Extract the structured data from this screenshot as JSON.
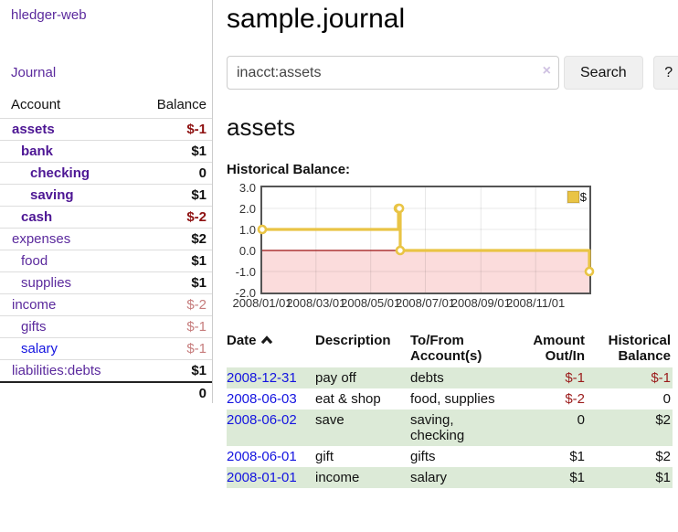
{
  "colors": {
    "link_purple": "#5b2a9d",
    "bold_account_purple": "#4d1694",
    "link_blue": "#1414e0",
    "negative_strong_red": "#8e1111",
    "negative_muted_red": "#c67c7c",
    "table_stripe_green": "#dcead7",
    "chart_line_gold": "#e9c445",
    "chart_negative_fill_pink": "#fbdcdc",
    "chart_zero_line_red": "#9c0f0f"
  },
  "sidebar": {
    "app_title": "hledger-web",
    "nav": {
      "journal": "Journal"
    },
    "accounts": {
      "headers": [
        "Account",
        "Balance"
      ],
      "rows": [
        {
          "name": "assets",
          "indent": 0,
          "bold": true,
          "balance": "$-1",
          "balance_style": "neg-strong"
        },
        {
          "name": "bank",
          "indent": 1,
          "bold": true,
          "balance": "$1",
          "balance_style": "pos"
        },
        {
          "name": "checking",
          "indent": 2,
          "bold": true,
          "balance": "0",
          "balance_style": "pos"
        },
        {
          "name": "saving",
          "indent": 2,
          "bold": true,
          "balance": "$1",
          "balance_style": "pos"
        },
        {
          "name": "cash",
          "indent": 1,
          "bold": true,
          "balance": "$-2",
          "balance_style": "neg-strong"
        },
        {
          "name": "expenses",
          "indent": 0,
          "bold": false,
          "balance": "$2",
          "balance_style": "pos"
        },
        {
          "name": "food",
          "indent": 1,
          "bold": false,
          "balance": "$1",
          "balance_style": "pos"
        },
        {
          "name": "supplies",
          "indent": 1,
          "bold": false,
          "balance": "$1",
          "balance_style": "pos"
        },
        {
          "name": "income",
          "indent": 0,
          "bold": false,
          "balance": "$-2",
          "balance_style": "neg-muted"
        },
        {
          "name": "gifts",
          "indent": 1,
          "bold": false,
          "balance": "$-1",
          "balance_style": "neg-muted"
        },
        {
          "name": "salary",
          "indent": 1,
          "bold": false,
          "balance": "$-1",
          "balance_style": "neg-muted",
          "link_color": "blue"
        },
        {
          "name": "liabilities:debts",
          "indent": 0,
          "bold": false,
          "balance": "$1",
          "balance_style": "pos"
        }
      ],
      "total": "0"
    }
  },
  "main": {
    "title": "sample.journal",
    "search": {
      "value": "inacct:assets",
      "clear_icon": "×",
      "button_label": "Search",
      "help_label": "?"
    },
    "account_heading": "assets",
    "chart_title": "Historical Balance:",
    "register": {
      "headers": {
        "date": "Date",
        "description": "Description",
        "accounts": "To/From Account(s)",
        "amount": "Amount Out/In",
        "balance": "Historical Balance"
      },
      "rows": [
        {
          "date": "2008-12-31",
          "description": "pay off",
          "accounts": "debts",
          "amount": "$-1",
          "amount_neg": true,
          "balance": "$-1",
          "balance_neg": true,
          "striped": true
        },
        {
          "date": "2008-06-03",
          "description": "eat & shop",
          "accounts": "food, supplies",
          "amount": "$-2",
          "amount_neg": true,
          "balance": "0",
          "balance_neg": false,
          "striped": false
        },
        {
          "date": "2008-06-02",
          "description": "save",
          "accounts": "saving, checking",
          "amount": "0",
          "amount_neg": false,
          "balance": "$2",
          "balance_neg": false,
          "striped": true
        },
        {
          "date": "2008-06-01",
          "description": "gift",
          "accounts": "gifts",
          "amount": "$1",
          "amount_neg": false,
          "balance": "$2",
          "balance_neg": false,
          "striped": false
        },
        {
          "date": "2008-01-01",
          "description": "income",
          "accounts": "salary",
          "amount": "$1",
          "amount_neg": false,
          "balance": "$1",
          "balance_neg": false,
          "striped": true
        }
      ]
    }
  },
  "chart_data": {
    "type": "line",
    "step": true,
    "title": "Historical Balance:",
    "legend": "$",
    "legend_position": "top-right",
    "grid": true,
    "xlim": [
      "2008-01-01",
      "2008-12-31"
    ],
    "ylim": [
      -2.0,
      3.0
    ],
    "y_ticks": [
      "3.0",
      "2.0",
      "1.0",
      "0.0",
      "-1.0",
      "-2.0"
    ],
    "x_ticks": [
      "2008/01/01",
      "2008/03/01",
      "2008/05/01",
      "2008/07/01",
      "2008/09/01",
      "2008/11/01"
    ],
    "series": [
      {
        "name": "$",
        "points": [
          [
            "2008-01-01",
            1
          ],
          [
            "2008-06-01",
            2
          ],
          [
            "2008-06-02",
            2
          ],
          [
            "2008-06-03",
            0
          ],
          [
            "2008-12-31",
            -1
          ]
        ]
      }
    ]
  }
}
